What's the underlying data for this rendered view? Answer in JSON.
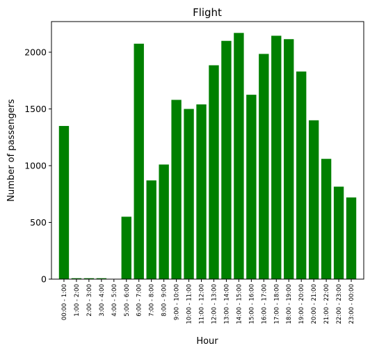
{
  "chart_data": {
    "type": "bar",
    "title": "Flight",
    "xlabel": "Hour",
    "ylabel": "Number of passengers",
    "ylim": [
      0,
      2270
    ],
    "yticks": [
      0,
      500,
      1000,
      1500,
      2000
    ],
    "grid": false,
    "color": "#008000",
    "categories": [
      "00:00 - 1:00",
      "1:00 - 2:00",
      "2:00 - 3:00",
      "3:00 - 4:00",
      "4:00 - 5:00",
      "5:00 - 6:00",
      "6:00 - 7:00",
      "7:00 - 8:00",
      "8:00 - 9:00",
      "9:00 - 10:00",
      "10:00 - 11:00",
      "11:00 - 12:00",
      "12:00 - 13:00",
      "13:00 - 14:00",
      "14:00 - 15:00",
      "15:00 - 16:00",
      "16:00 - 17:00",
      "17:00 - 18:00",
      "18:00 - 19:00",
      "19:00 - 20:00",
      "20:00 - 21:00",
      "21:00 - 22:00",
      "22:00 - 23:00",
      "23:00 - 00:00"
    ],
    "values": [
      1350,
      8,
      8,
      8,
      0,
      550,
      2075,
      870,
      1010,
      1580,
      1500,
      1540,
      1885,
      2100,
      2170,
      1625,
      1985,
      2145,
      2115,
      1830,
      1400,
      1060,
      815,
      720
    ]
  }
}
